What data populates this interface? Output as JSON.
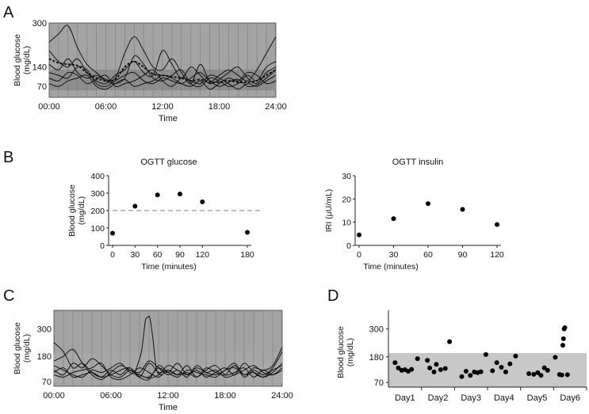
{
  "figure": {
    "panel_labels": [
      "A",
      "B",
      "C",
      "D"
    ]
  },
  "chart_data": [
    {
      "id": "A",
      "type": "line",
      "title": "",
      "xlabel": "Time",
      "ylabel": [
        "Blood glucose",
        "(mg/dL)"
      ],
      "x_ticks": [
        "00:00",
        "06:00",
        "12:00",
        "18:00",
        "24:00"
      ],
      "x_range_hours": [
        0,
        24
      ],
      "y_ticks": [
        70,
        140,
        300
      ],
      "ylim": [
        30,
        300
      ],
      "target_band": [
        70,
        140
      ],
      "series": [
        {
          "name": "day1",
          "x": [
            0,
            1,
            2,
            3,
            4,
            5,
            6,
            7,
            8,
            9,
            10,
            11,
            12,
            13,
            14,
            15,
            16,
            17,
            18,
            19,
            20,
            21,
            22,
            23,
            24
          ],
          "values": [
            230,
            260,
            290,
            210,
            150,
            120,
            95,
            100,
            190,
            250,
            200,
            140,
            130,
            170,
            120,
            80,
            150,
            90,
            110,
            130,
            110,
            90,
            130,
            190,
            250
          ]
        },
        {
          "name": "day2",
          "x": [
            0,
            1,
            2,
            3,
            4,
            5,
            6,
            7,
            8,
            9,
            10,
            11,
            12,
            13,
            14,
            15,
            16,
            17,
            18,
            19,
            20,
            21,
            22,
            23,
            24
          ],
          "values": [
            200,
            160,
            140,
            170,
            120,
            90,
            80,
            110,
            130,
            160,
            120,
            110,
            200,
            150,
            100,
            140,
            110,
            80,
            95,
            120,
            140,
            100,
            80,
            120,
            140
          ]
        },
        {
          "name": "day3",
          "x": [
            0,
            1,
            2,
            3,
            4,
            5,
            6,
            7,
            8,
            9,
            10,
            11,
            12,
            13,
            14,
            15,
            16,
            17,
            18,
            19,
            20,
            21,
            22,
            23,
            24
          ],
          "values": [
            150,
            130,
            170,
            120,
            100,
            110,
            90,
            80,
            100,
            180,
            150,
            100,
            90,
            110,
            130,
            80,
            70,
            100,
            90,
            70,
            80,
            110,
            90,
            140,
            160
          ]
        },
        {
          "name": "day4",
          "x": [
            0,
            1,
            2,
            3,
            4,
            5,
            6,
            7,
            8,
            9,
            10,
            11,
            12,
            13,
            14,
            15,
            16,
            17,
            18,
            19,
            20,
            21,
            22,
            23,
            24
          ],
          "values": [
            120,
            110,
            100,
            140,
            130,
            80,
            70,
            90,
            110,
            120,
            90,
            80,
            100,
            90,
            80,
            100,
            120,
            90,
            70,
            85,
            95,
            70,
            75,
            100,
            130
          ]
        },
        {
          "name": "day5",
          "x": [
            0,
            1,
            2,
            3,
            4,
            5,
            6,
            7,
            8,
            9,
            10,
            11,
            12,
            13,
            14,
            15,
            16,
            17,
            18,
            19,
            20,
            21,
            22,
            23,
            24
          ],
          "values": [
            100,
            90,
            120,
            110,
            80,
            95,
            110,
            70,
            80,
            90,
            110,
            130,
            90,
            70,
            100,
            90,
            80,
            110,
            100,
            80,
            60,
            80,
            70,
            90,
            110
          ]
        },
        {
          "name": "day6",
          "x": [
            0,
            1,
            2,
            3,
            4,
            5,
            6,
            7,
            8,
            9,
            10,
            11,
            12,
            13,
            14,
            15,
            16,
            17,
            18,
            19,
            20,
            21,
            22,
            23,
            24
          ],
          "values": [
            80,
            70,
            90,
            100,
            110,
            70,
            60,
            80,
            95,
            70,
            80,
            90,
            110,
            100,
            80,
            70,
            90,
            60,
            80,
            100,
            90,
            120,
            110,
            80,
            90
          ]
        },
        {
          "name": "mean",
          "style": "dashed",
          "x": [
            0,
            1,
            2,
            3,
            4,
            5,
            6,
            7,
            8,
            9,
            10,
            11,
            12,
            13,
            14,
            15,
            16,
            17,
            18,
            19,
            20,
            21,
            22,
            23,
            24
          ],
          "values": [
            170,
            155,
            150,
            145,
            120,
            100,
            90,
            95,
            140,
            160,
            140,
            115,
            110,
            105,
            100,
            90,
            95,
            85,
            85,
            90,
            85,
            85,
            90,
            110,
            130
          ]
        }
      ]
    },
    {
      "id": "B1",
      "type": "scatter",
      "title": "OGTT glucose",
      "xlabel": "Time (minutes)",
      "ylabel": [
        "Blood glucose",
        "(mg/dL)"
      ],
      "x": [
        0,
        30,
        60,
        90,
        120,
        180
      ],
      "values": [
        70,
        225,
        290,
        295,
        250,
        75
      ],
      "xlim": [
        0,
        180
      ],
      "x_ticks": [
        0,
        30,
        60,
        90,
        120,
        180
      ],
      "ylim": [
        0,
        400
      ],
      "y_ticks": [
        0,
        100,
        200,
        300,
        400
      ],
      "reference_line": 200
    },
    {
      "id": "B2",
      "type": "scatter",
      "title": "OGTT insulin",
      "xlabel": "Time (minutes)",
      "ylabel": [
        "IRI (µU/mL)"
      ],
      "x": [
        0,
        30,
        60,
        90,
        120
      ],
      "values": [
        4.5,
        11.5,
        18,
        15.5,
        9
      ],
      "xlim": [
        0,
        120
      ],
      "x_ticks": [
        0,
        30,
        60,
        90,
        120
      ],
      "ylim": [
        0,
        30
      ],
      "y_ticks": [
        0,
        10,
        20,
        30
      ]
    },
    {
      "id": "C",
      "type": "line",
      "title": "",
      "xlabel": "Time",
      "ylabel": [
        "Blood glucose",
        "(mg/dL)"
      ],
      "x_ticks": [
        "00:00",
        "06:00",
        "12:00",
        "18:00",
        "24:00"
      ],
      "x_range_hours": [
        0,
        24
      ],
      "y_ticks": [
        70,
        180,
        300
      ],
      "ylim": [
        50,
        380
      ],
      "target_band": [
        70,
        180
      ],
      "series": [
        {
          "name": "day1",
          "x": [
            0,
            1,
            2,
            3,
            4,
            5,
            6,
            7,
            8,
            9,
            10,
            11,
            12,
            13,
            14,
            15,
            16,
            17,
            18,
            19,
            20,
            21,
            22,
            23,
            24
          ],
          "values": [
            240,
            200,
            130,
            150,
            110,
            90,
            120,
            100,
            130,
            90,
            150,
            110,
            120,
            100,
            140,
            90,
            130,
            110,
            100,
            140,
            90,
            120,
            100,
            130,
            200
          ]
        },
        {
          "name": "day2",
          "x": [
            0,
            1,
            2,
            3,
            4,
            5,
            6,
            7,
            8,
            9,
            10,
            11,
            12,
            13,
            14,
            15,
            16,
            17,
            18,
            19,
            20,
            21,
            22,
            23,
            24
          ],
          "values": [
            160,
            180,
            210,
            150,
            100,
            80,
            110,
            140,
            120,
            100,
            90,
            130,
            110,
            150,
            100,
            120,
            90,
            110,
            130,
            100,
            150,
            110,
            90,
            120,
            140
          ]
        },
        {
          "name": "day3",
          "x": [
            0,
            1,
            2,
            3,
            4,
            5,
            6,
            7,
            8,
            9,
            10,
            11,
            12,
            13,
            14,
            15,
            16,
            17,
            18,
            19,
            20,
            21,
            22,
            23,
            24
          ],
          "values": [
            120,
            100,
            150,
            130,
            170,
            140,
            100,
            90,
            120,
            110,
            160,
            130,
            100,
            120,
            90,
            140,
            110,
            100,
            120,
            150,
            100,
            130,
            120,
            140,
            220
          ]
        },
        {
          "name": "day4",
          "x": [
            0,
            1,
            2,
            3,
            4,
            5,
            6,
            7,
            8,
            9,
            10,
            11,
            12,
            13,
            14,
            15,
            16,
            17,
            18,
            19,
            20,
            21,
            22,
            23,
            24
          ],
          "values": [
            100,
            90,
            110,
            120,
            130,
            150,
            90,
            80,
            100,
            130,
            110,
            90,
            120,
            100,
            110,
            90,
            120,
            140,
            100,
            110,
            130,
            90,
            120,
            100,
            120
          ]
        },
        {
          "name": "day5",
          "x": [
            0,
            1,
            2,
            3,
            4,
            5,
            6,
            7,
            8,
            9,
            10,
            11,
            12,
            13,
            14,
            15,
            16,
            17,
            18,
            19,
            20,
            21,
            22,
            23,
            24
          ],
          "values": [
            140,
            120,
            100,
            90,
            120,
            110,
            130,
            150,
            110,
            100,
            85,
            100,
            140,
            120,
            100,
            130,
            110,
            120,
            90,
            100,
            120,
            140,
            110,
            100,
            130
          ]
        },
        {
          "name": "day6",
          "x": [
            0,
            1,
            2,
            3,
            4,
            5,
            6,
            7,
            8,
            9,
            10,
            11,
            12,
            13,
            14,
            15,
            16,
            17,
            18,
            19,
            20,
            21,
            22,
            23,
            24
          ],
          "values": [
            110,
            130,
            90,
            100,
            110,
            90,
            100,
            120,
            130,
            90,
            80,
            140,
            110,
            90,
            120,
            110,
            100,
            90,
            120,
            130,
            100,
            110,
            90,
            110,
            150
          ]
        },
        {
          "name": "spike",
          "x": [
            8.5,
            9.2,
            9.6,
            9.9,
            10.1,
            10.4,
            10.8,
            11.4
          ],
          "values": [
            110,
            200,
            330,
            350,
            345,
            260,
            120,
            100
          ]
        }
      ]
    },
    {
      "id": "D",
      "type": "scatter",
      "title": "",
      "xlabel": "",
      "ylabel": [
        "Blood glucose",
        "(mg/dL)"
      ],
      "categories": [
        "Day1",
        "Day2",
        "Day3",
        "Day4",
        "Day5",
        "Day6"
      ],
      "y_ticks": [
        70,
        180,
        300
      ],
      "ylim": [
        50,
        380
      ],
      "target_band": [
        70,
        180
      ],
      "points": [
        {
          "day": 0,
          "offset": 0.2,
          "value": 155
        },
        {
          "day": 0,
          "offset": 0.3,
          "value": 132
        },
        {
          "day": 0,
          "offset": 0.4,
          "value": 122
        },
        {
          "day": 0,
          "offset": 0.5,
          "value": 125
        },
        {
          "day": 0,
          "offset": 0.6,
          "value": 118
        },
        {
          "day": 0,
          "offset": 0.7,
          "value": 126
        },
        {
          "day": 0,
          "offset": 0.88,
          "value": 172
        },
        {
          "day": 1,
          "offset": 0.18,
          "value": 165
        },
        {
          "day": 1,
          "offset": 0.25,
          "value": 132
        },
        {
          "day": 1,
          "offset": 0.38,
          "value": 115
        },
        {
          "day": 1,
          "offset": 0.45,
          "value": 148
        },
        {
          "day": 1,
          "offset": 0.58,
          "value": 125
        },
        {
          "day": 1,
          "offset": 0.72,
          "value": 130
        },
        {
          "day": 1,
          "offset": 0.85,
          "value": 245
        },
        {
          "day": 2,
          "offset": 0.22,
          "value": 95
        },
        {
          "day": 2,
          "offset": 0.35,
          "value": 118
        },
        {
          "day": 2,
          "offset": 0.48,
          "value": 100
        },
        {
          "day": 2,
          "offset": 0.6,
          "value": 115
        },
        {
          "day": 2,
          "offset": 0.7,
          "value": 112
        },
        {
          "day": 2,
          "offset": 0.8,
          "value": 116
        },
        {
          "day": 2,
          "offset": 0.95,
          "value": 190
        },
        {
          "day": 3,
          "offset": 0.15,
          "value": 120
        },
        {
          "day": 3,
          "offset": 0.28,
          "value": 155
        },
        {
          "day": 3,
          "offset": 0.42,
          "value": 135
        },
        {
          "day": 3,
          "offset": 0.55,
          "value": 115
        },
        {
          "day": 3,
          "offset": 0.68,
          "value": 150
        },
        {
          "day": 3,
          "offset": 0.85,
          "value": 183
        },
        {
          "day": 4,
          "offset": 0.25,
          "value": 108
        },
        {
          "day": 4,
          "offset": 0.4,
          "value": 105
        },
        {
          "day": 4,
          "offset": 0.52,
          "value": 112
        },
        {
          "day": 4,
          "offset": 0.62,
          "value": 100
        },
        {
          "day": 4,
          "offset": 0.72,
          "value": 133
        },
        {
          "day": 4,
          "offset": 0.82,
          "value": 122
        },
        {
          "day": 5,
          "offset": 0.05,
          "value": 178
        },
        {
          "day": 5,
          "offset": 0.18,
          "value": 104
        },
        {
          "day": 5,
          "offset": 0.28,
          "value": 230
        },
        {
          "day": 5,
          "offset": 0.3,
          "value": 258
        },
        {
          "day": 5,
          "offset": 0.32,
          "value": 300
        },
        {
          "day": 5,
          "offset": 0.34,
          "value": 305
        },
        {
          "day": 5,
          "offset": 0.25,
          "value": 102
        },
        {
          "day": 5,
          "offset": 0.42,
          "value": 103
        }
      ]
    }
  ]
}
